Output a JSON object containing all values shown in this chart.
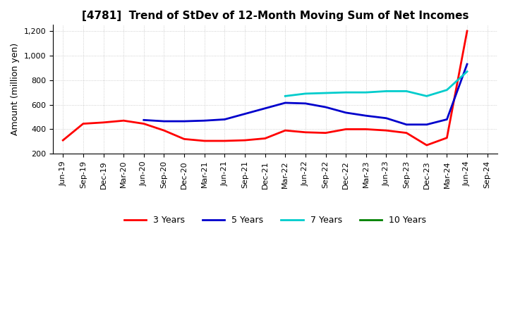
{
  "title": "[4781]  Trend of StDev of 12-Month Moving Sum of Net Incomes",
  "ylabel": "Amount (million yen)",
  "x_labels": [
    "Jun-19",
    "Sep-19",
    "Dec-19",
    "Mar-20",
    "Jun-20",
    "Sep-20",
    "Dec-20",
    "Mar-21",
    "Jun-21",
    "Sep-21",
    "Dec-21",
    "Mar-22",
    "Jun-22",
    "Sep-22",
    "Dec-22",
    "Mar-23",
    "Jun-23",
    "Sep-23",
    "Dec-23",
    "Mar-24",
    "Jun-24",
    "Sep-24"
  ],
  "series": {
    "3 Years": {
      "color": "#FF0000",
      "data": [
        310,
        445,
        455,
        470,
        445,
        390,
        320,
        305,
        305,
        310,
        325,
        390,
        375,
        370,
        400,
        400,
        390,
        370,
        270,
        330,
        1200,
        null
      ]
    },
    "5 Years": {
      "color": "#0000CC",
      "data": [
        null,
        null,
        null,
        null,
        475,
        465,
        465,
        470,
        480,
        525,
        570,
        615,
        610,
        580,
        535,
        510,
        490,
        438,
        438,
        480,
        930,
        null
      ]
    },
    "7 Years": {
      "color": "#00CCCC",
      "data": [
        null,
        null,
        null,
        null,
        null,
        null,
        null,
        null,
        null,
        null,
        null,
        670,
        690,
        695,
        700,
        700,
        710,
        710,
        670,
        720,
        870,
        null
      ]
    },
    "10 Years": {
      "color": "#008000",
      "data": [
        null,
        null,
        null,
        null,
        null,
        null,
        null,
        null,
        null,
        null,
        null,
        null,
        null,
        null,
        null,
        null,
        null,
        null,
        null,
        null,
        null,
        null
      ]
    }
  },
  "ylim": [
    200,
    1250
  ],
  "yticks": [
    200,
    400,
    600,
    800,
    1000,
    1200
  ],
  "ytick_labels": [
    "",
    "400",
    "600",
    "800",
    "1,000",
    "1,200"
  ],
  "background_color": "#FFFFFF",
  "plot_bg_color": "#FFFFFF",
  "grid_color": "#BBBBBB",
  "legend_position": "lower center",
  "title_fontsize": 11,
  "axis_fontsize": 8,
  "ylabel_fontsize": 9,
  "linewidth": 2.0
}
